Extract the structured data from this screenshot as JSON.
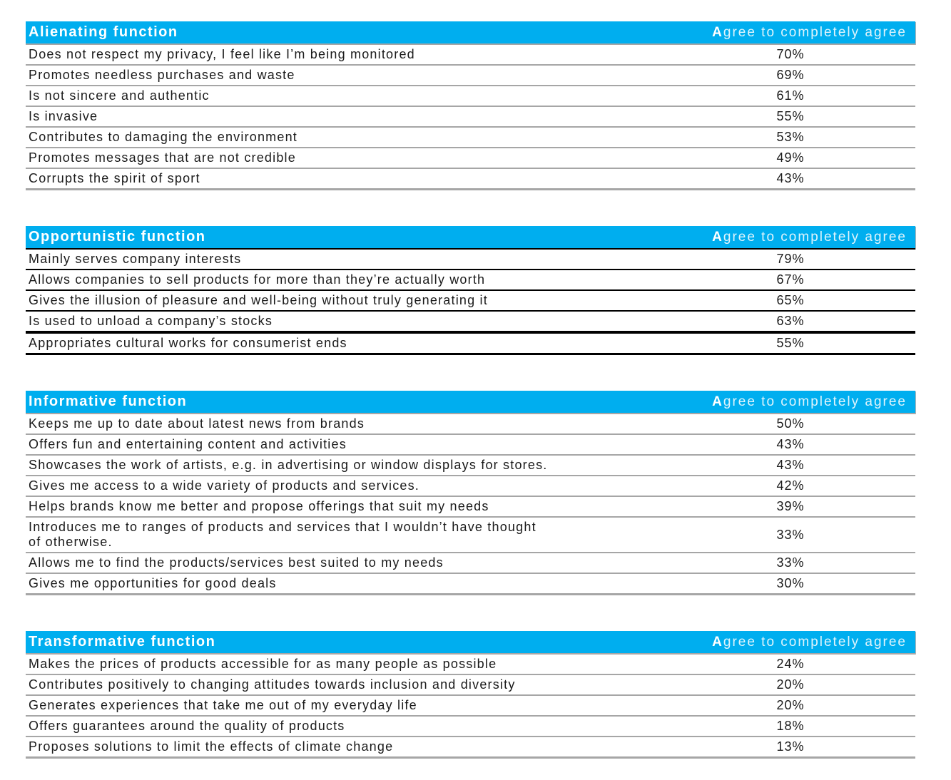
{
  "colors": {
    "accent": "#00AEEF",
    "header_title_text": "#FFFFFF",
    "header_value_text": "#DFF4FC",
    "rule_gray": "#A6A6A6",
    "rule_black": "#000000",
    "body_text": "#1A1A1A"
  },
  "value_header": {
    "first": "A",
    "rest": "gree to completely agree",
    "full": "Agree to completely agree"
  },
  "tables": [
    {
      "title": "Alienating function",
      "rows": [
        {
          "label": "Does not respect my privacy, I feel like I’m being monitored",
          "value": "70%"
        },
        {
          "label": "Promotes needless purchases and waste",
          "value": "69%"
        },
        {
          "label": "Is not sincere and authentic",
          "value": "61%"
        },
        {
          "label": "Is invasive",
          "value": "55%"
        },
        {
          "label": "Contributes to damaging the environment",
          "value": "53%"
        },
        {
          "label": "Promotes messages that are not credible",
          "value": "49%"
        },
        {
          "label": "Corrupts the spirit of sport",
          "value": "43%"
        }
      ]
    },
    {
      "title": "Opportunistic function",
      "rows": [
        {
          "label": "Mainly serves company interests",
          "value": "79%"
        },
        {
          "label": "Allows companies to sell products for more than they’re actually worth",
          "value": "67%"
        },
        {
          "label": "Gives the illusion of pleasure and well-being without truly generating it",
          "value": "65%"
        },
        {
          "label": "Is used to unload a company’s stocks",
          "value": "63%"
        },
        {
          "label": "Appropriates cultural works for consumerist ends",
          "value": "55%"
        }
      ]
    },
    {
      "title": "Informative function",
      "rows": [
        {
          "label": "Keeps me up to date about latest news from brands",
          "value": "50%"
        },
        {
          "label": "Offers fun and entertaining content and activities",
          "value": "43%"
        },
        {
          "label": "Showcases the work of artists, e.g. in advertising or window displays for stores.",
          "value": "43%"
        },
        {
          "label": "Gives me access to a wide variety of products and services.",
          "value": "42%"
        },
        {
          "label": "Helps brands know me better and propose offerings that suit my needs",
          "value": "39%"
        },
        {
          "label": "Introduces me to ranges of products and services that I wouldn’t have thought\nof otherwise.",
          "value": "33%"
        },
        {
          "label": "Allows me to find the products/services best suited to my needs",
          "value": "33%"
        },
        {
          "label": "Gives me opportunities for good deals",
          "value": "30%"
        }
      ]
    },
    {
      "title": "Transformative function",
      "rows": [
        {
          "label": "Makes the prices of products accessible for as many people as possible",
          "value": "24%"
        },
        {
          "label": "Contributes positively to changing attitudes towards inclusion and diversity",
          "value": "20%"
        },
        {
          "label": "Generates experiences that take me out of my everyday life",
          "value": "20%"
        },
        {
          "label": "Offers guarantees around the quality of products",
          "value": "18%"
        },
        {
          "label": "Proposes solutions to limit the effects of climate change",
          "value": "13%"
        }
      ]
    }
  ],
  "chart_data": [
    {
      "type": "table",
      "title": "Alienating function",
      "value_column": "Agree to completely agree",
      "categories": [
        "Does not respect my privacy, I feel like I’m being monitored",
        "Promotes needless purchases and waste",
        "Is not sincere and authentic",
        "Is invasive",
        "Contributes to damaging the environment",
        "Promotes messages that are not credible",
        "Corrupts the spirit of sport"
      ],
      "values": [
        70,
        69,
        61,
        55,
        53,
        49,
        43
      ],
      "unit": "%"
    },
    {
      "type": "table",
      "title": "Opportunistic function",
      "value_column": "Agree to completely agree",
      "categories": [
        "Mainly serves company interests",
        "Allows companies to sell products for more than they’re actually worth",
        "Gives the illusion of pleasure and well-being without truly generating it",
        "Is used to unload a company’s stocks",
        "Appropriates cultural works for consumerist ends"
      ],
      "values": [
        79,
        67,
        65,
        63,
        55
      ],
      "unit": "%"
    },
    {
      "type": "table",
      "title": "Informative function",
      "value_column": "Agree to completely agree",
      "categories": [
        "Keeps me up to date about latest news from brands",
        "Offers fun and entertaining content and activities",
        "Showcases the work of artists, e.g. in advertising or window displays for stores.",
        "Gives me access to a wide variety of products and services.",
        "Helps brands know me better and propose offerings that suit my needs",
        "Introduces me to ranges of products and services that I wouldn’t have thought of otherwise.",
        "Allows me to find the products/services best suited to my needs",
        "Gives me opportunities for good deals"
      ],
      "values": [
        50,
        43,
        43,
        42,
        39,
        33,
        33,
        30
      ],
      "unit": "%"
    },
    {
      "type": "table",
      "title": "Transformative function",
      "value_column": "Agree to completely agree",
      "categories": [
        "Makes the prices of products accessible for as many people as possible",
        "Contributes positively to changing attitudes towards inclusion and diversity",
        "Generates experiences that take me out of my everyday life",
        "Offers guarantees around the quality of products",
        "Proposes solutions to limit the effects of climate change"
      ],
      "values": [
        24,
        20,
        20,
        18,
        13
      ],
      "unit": "%"
    }
  ]
}
